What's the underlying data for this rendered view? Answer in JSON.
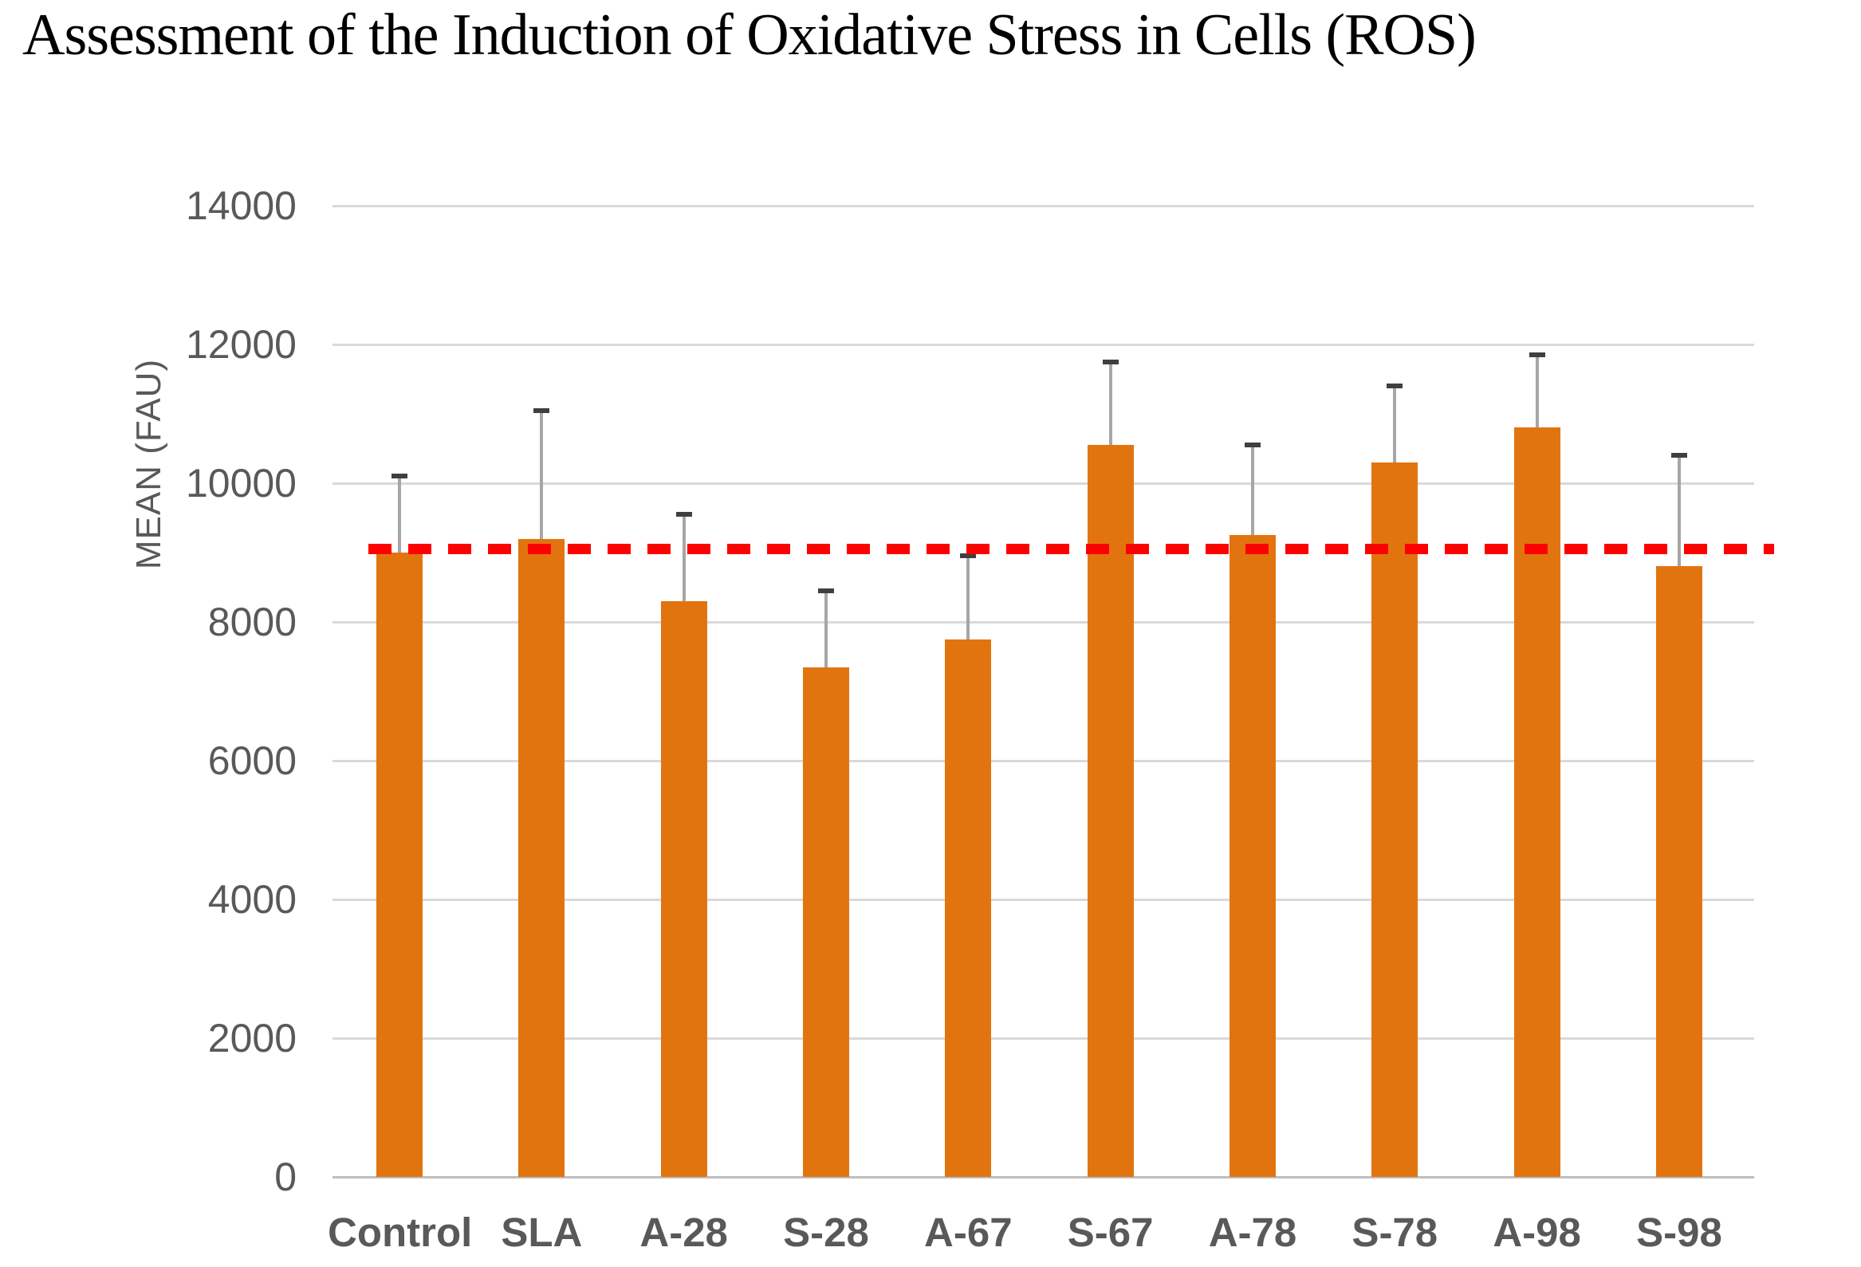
{
  "title": "Assessment of the Induction of Oxidative Stress in Cells (ROS)",
  "chart_data": {
    "type": "bar",
    "title": "Assessment of the Induction of Oxidative Stress in Cells (ROS)",
    "xlabel": "",
    "ylabel": "MEAN (FAU)",
    "ylim": [
      0,
      14000
    ],
    "ytick_step": 2000,
    "yticks": [
      "0",
      "2000",
      "4000",
      "6000",
      "8000",
      "10000",
      "12000",
      "14000"
    ],
    "categories": [
      "Control",
      "SLA",
      "A-28",
      "S-28",
      "A-67",
      "S-67",
      "A-78",
      "S-78",
      "A-98",
      "S-98"
    ],
    "values": [
      9000,
      9200,
      8300,
      7350,
      7750,
      10550,
      9250,
      10300,
      10800,
      8800
    ],
    "error_bar_tops": [
      10100,
      11050,
      9550,
      8450,
      8950,
      11750,
      10550,
      11400,
      11850,
      10400
    ],
    "reference_line": {
      "value": 9050,
      "style": "dashed",
      "color": "#FF0000"
    },
    "legend": "none",
    "grid": "horizontal"
  },
  "colors": {
    "bar": "#E27410",
    "reference": "#FF0000",
    "gridline": "#D9D9D9",
    "baseline": "#BFBFBF",
    "axis_text": "#595959",
    "error_line": "#A6A6A6",
    "error_cap": "#3F3F3F",
    "title_text": "#000000"
  }
}
